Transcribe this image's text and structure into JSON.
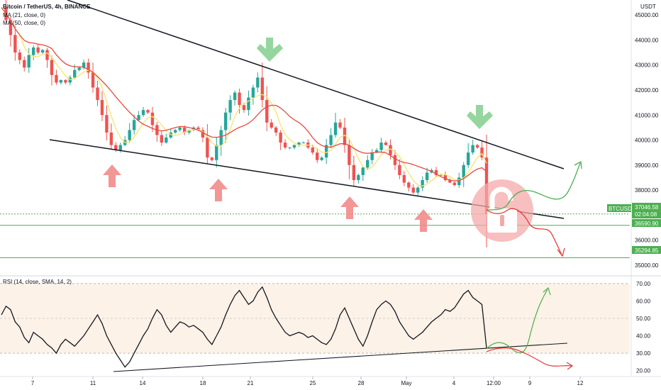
{
  "header": {
    "title": "Bitcoin / TetherUS, 4h, BINANCE",
    "ma21": "MA (21, close, 0)",
    "ma50": "MA (50, close, 0)",
    "currency": "USDT"
  },
  "rsi_panel": {
    "label": "RSI (14, close, SMA, 14, 2)"
  },
  "price_tags": {
    "symbol": "BTCUSDT",
    "current": "37046.58",
    "countdown": "02:04:08",
    "support1": "36590.90",
    "support2": "35294.85"
  },
  "chart_data": [
    {
      "type": "candlestick",
      "title": "Bitcoin / TetherUS, 4h, BINANCE",
      "ylim": [
        34600,
        45600
      ],
      "y_ticks": [
        "45000.00",
        "44000.00",
        "43000.00",
        "42000.00",
        "41000.00",
        "40000.00",
        "39000.00",
        "38000.00",
        "37000.00",
        "36000.00",
        "35000.00"
      ],
      "x_ticks": [
        "7",
        "11",
        "14",
        "18",
        "21",
        "25",
        "28",
        "May",
        "4",
        "12:00",
        "9",
        "12"
      ],
      "close_path": [
        45300,
        44800,
        44200,
        43500,
        43200,
        42900,
        43400,
        43700,
        43500,
        43600,
        43200,
        42600,
        42300,
        42400,
        42300,
        42500,
        42800,
        42900,
        43100,
        42700,
        42100,
        41600,
        41000,
        40300,
        39800,
        39600,
        39800,
        40000,
        40400,
        40800,
        41000,
        41200,
        41100,
        40600,
        40200,
        39900,
        40100,
        40300,
        40400,
        40500,
        40300,
        40400,
        40500,
        40400,
        40100,
        39300,
        39200,
        39800,
        40400,
        41100,
        41600,
        41900,
        41400,
        41200,
        41700,
        42100,
        42500,
        41600,
        40700,
        40500,
        40300,
        39900,
        39700,
        39700,
        39800,
        39900,
        39900,
        39700,
        39500,
        39200,
        39300,
        39800,
        40200,
        40700,
        40500,
        39800,
        39000,
        38400,
        38600,
        38900,
        39200,
        39500,
        39600,
        39900,
        39800,
        39400,
        39000,
        38600,
        38300,
        38100,
        37900,
        38100,
        38400,
        38700,
        38800,
        38600,
        38600,
        38400,
        38300,
        38200,
        38500,
        39000,
        39500,
        39800,
        39700,
        39300,
        37046.58
      ],
      "series": [
        {
          "name": "MA (21, close, 0)",
          "color": "#f7e46b"
        },
        {
          "name": "MA (50, close, 0)",
          "color": "#e84a3f"
        }
      ],
      "levels": [
        36590.9,
        35294.85
      ],
      "current_price": 37046.58,
      "colors": {
        "up": "#26a69a",
        "down": "#ef5350",
        "trendline": "#131722",
        "support": "#4caf50",
        "up_arrow": "#f28b8b",
        "down_arrow": "#8fd49a",
        "forecast_bull": "#4caf50",
        "forecast_bear": "#e53935"
      },
      "annotations": [
        "up-arrow x6",
        "down-arrow x2",
        "unlock-icon",
        "falling-wedge trendlines",
        "bullish/bearish forecast arrows"
      ]
    },
    {
      "type": "line",
      "title": "RSI (14, close, SMA, 14, 2)",
      "ylim": [
        17,
        74
      ],
      "y_ticks": [
        "70.00",
        "60.00",
        "50.00",
        "40.00",
        "30.00",
        "20.00"
      ],
      "band": [
        30,
        70
      ],
      "values": [
        52,
        57,
        55,
        48,
        45,
        39,
        36,
        42,
        40,
        38,
        35,
        33,
        30,
        35,
        38,
        36,
        34,
        37,
        40,
        44,
        48,
        52,
        47,
        40,
        35,
        30,
        26,
        22,
        25,
        30,
        35,
        40,
        44,
        50,
        55,
        52,
        46,
        42,
        45,
        48,
        47,
        45,
        46,
        44,
        42,
        38,
        35,
        40,
        45,
        52,
        58,
        63,
        66,
        62,
        58,
        60,
        65,
        68,
        62,
        55,
        50,
        46,
        42,
        40,
        41,
        42,
        41,
        39,
        40,
        38,
        36,
        35,
        38,
        44,
        52,
        56,
        50,
        44,
        38,
        34,
        40,
        48,
        55,
        58,
        60,
        58,
        54,
        48,
        44,
        40,
        38,
        40,
        42,
        45,
        48,
        50,
        52,
        55,
        54,
        56,
        60,
        64,
        66,
        62,
        60,
        58,
        33
      ],
      "colors": {
        "line": "#131722",
        "band_fill": "#fdf1e4",
        "forecast_bull": "#4caf50",
        "forecast_bear": "#e53935"
      }
    }
  ]
}
